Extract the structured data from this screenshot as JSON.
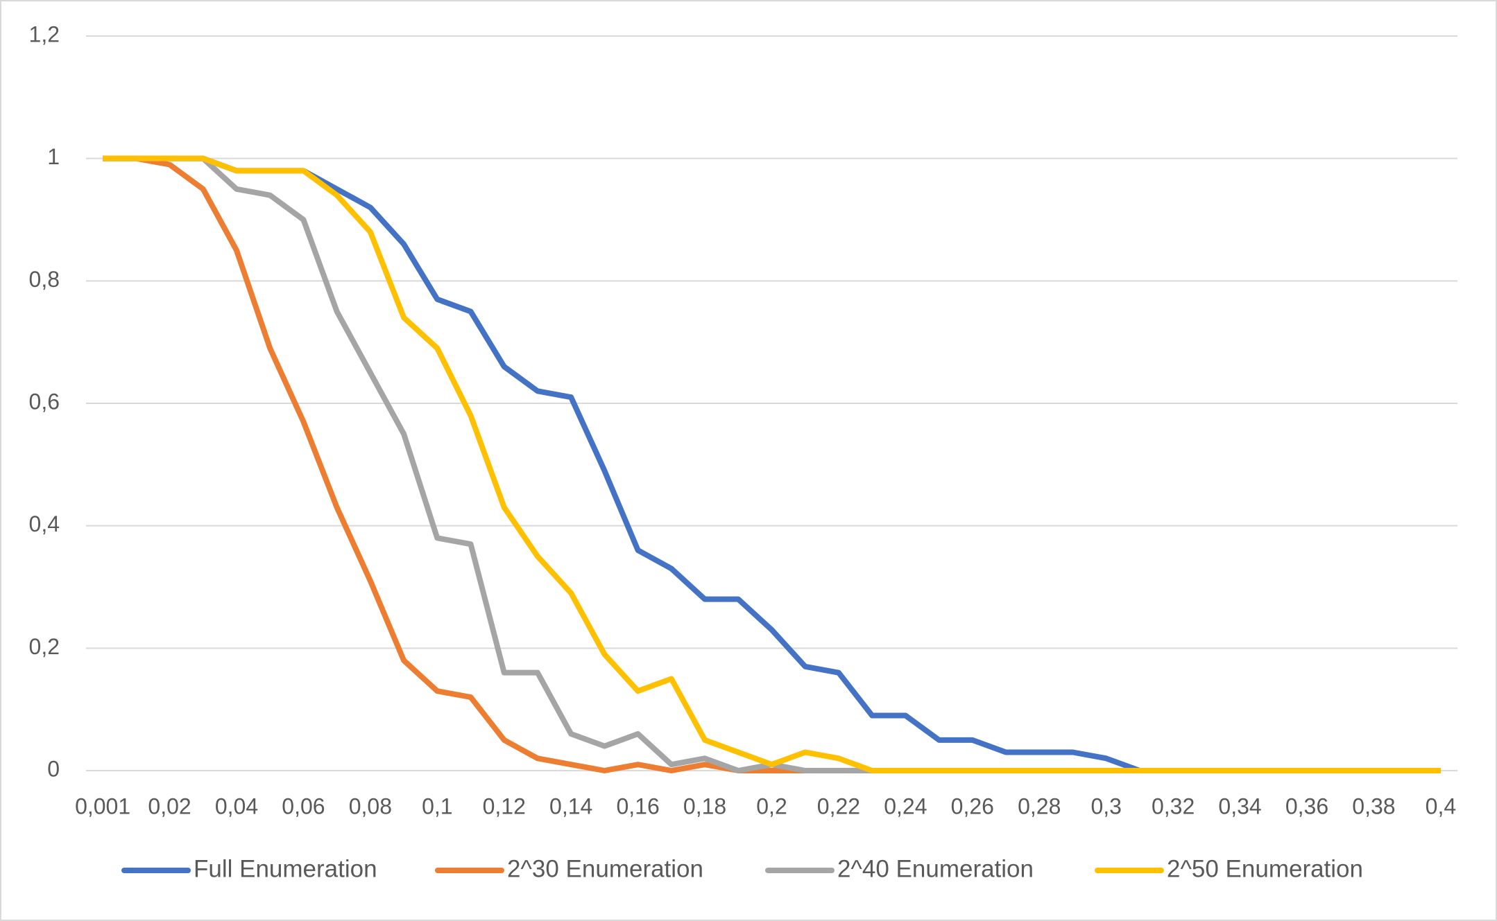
{
  "chart_data": {
    "type": "line",
    "categories": [
      "0,001",
      null,
      "0,02",
      null,
      "0,04",
      null,
      "0,06",
      null,
      "0,08",
      null,
      "0,1",
      null,
      "0,12",
      null,
      "0,14",
      null,
      "0,16",
      null,
      "0,18",
      null,
      "0,2",
      null,
      "0,22",
      null,
      "0,24",
      null,
      "0,26",
      null,
      "0,28",
      null,
      "0,3",
      null,
      "0,32",
      null,
      "0,34",
      null,
      "0,36",
      null,
      "0,38",
      null,
      "0,4"
    ],
    "series": [
      {
        "name": "Full Enumeration",
        "color": "#4472c4",
        "values": [
          1,
          1,
          1,
          1,
          0.98,
          0.98,
          0.98,
          0.95,
          0.92,
          0.86,
          0.77,
          0.75,
          0.66,
          0.62,
          0.61,
          0.49,
          0.36,
          0.33,
          0.28,
          0.28,
          0.23,
          0.17,
          0.16,
          0.09,
          0.09,
          0.05,
          0.05,
          0.03,
          0.03,
          0.03,
          0.02,
          0,
          0,
          0,
          0,
          0,
          0,
          0,
          0,
          0,
          0
        ]
      },
      {
        "name": "2^30 Enumeration",
        "color": "#ed7d31",
        "values": [
          1,
          1,
          0.99,
          0.95,
          0.85,
          0.69,
          0.57,
          0.43,
          0.31,
          0.18,
          0.13,
          0.12,
          0.05,
          0.02,
          0.01,
          0,
          0.01,
          0,
          0.01,
          0,
          0,
          0,
          0,
          0,
          0,
          0,
          0,
          0,
          0,
          0,
          0,
          0,
          0,
          0,
          0,
          0,
          0,
          0,
          0,
          0,
          0
        ]
      },
      {
        "name": "2^40 Enumeration",
        "color": "#a5a5a5",
        "values": [
          1,
          1,
          1,
          1,
          0.95,
          0.94,
          0.9,
          0.75,
          0.65,
          0.55,
          0.38,
          0.37,
          0.16,
          0.16,
          0.06,
          0.04,
          0.06,
          0.01,
          0.02,
          0,
          0.01,
          0,
          0,
          0,
          0,
          0,
          0,
          0,
          0,
          0,
          0,
          0,
          0,
          0,
          0,
          0,
          0,
          0,
          0,
          0,
          0
        ]
      },
      {
        "name": "2^50 Enumeration",
        "color": "#ffc000",
        "values": [
          1,
          1,
          1,
          1,
          0.98,
          0.98,
          0.98,
          0.94,
          0.88,
          0.74,
          0.69,
          0.58,
          0.43,
          0.35,
          0.29,
          0.19,
          0.13,
          0.15,
          0.05,
          0.03,
          0.01,
          0.03,
          0.02,
          0,
          0,
          0,
          0,
          0,
          0,
          0,
          0,
          0,
          0,
          0,
          0,
          0,
          0,
          0,
          0,
          0,
          0
        ]
      }
    ],
    "ylim": [
      0,
      1.2
    ],
    "yticks": [
      0,
      {
        "value": 0.2,
        "label": "0,2"
      },
      {
        "value": 0.4,
        "label": "0,4"
      },
      {
        "value": 0.6,
        "label": "0,6"
      },
      {
        "value": 0.8,
        "label": "0,8"
      },
      1,
      {
        "value": 1.2,
        "label": "1,2"
      }
    ],
    "grid": true,
    "legend": "bottom"
  }
}
